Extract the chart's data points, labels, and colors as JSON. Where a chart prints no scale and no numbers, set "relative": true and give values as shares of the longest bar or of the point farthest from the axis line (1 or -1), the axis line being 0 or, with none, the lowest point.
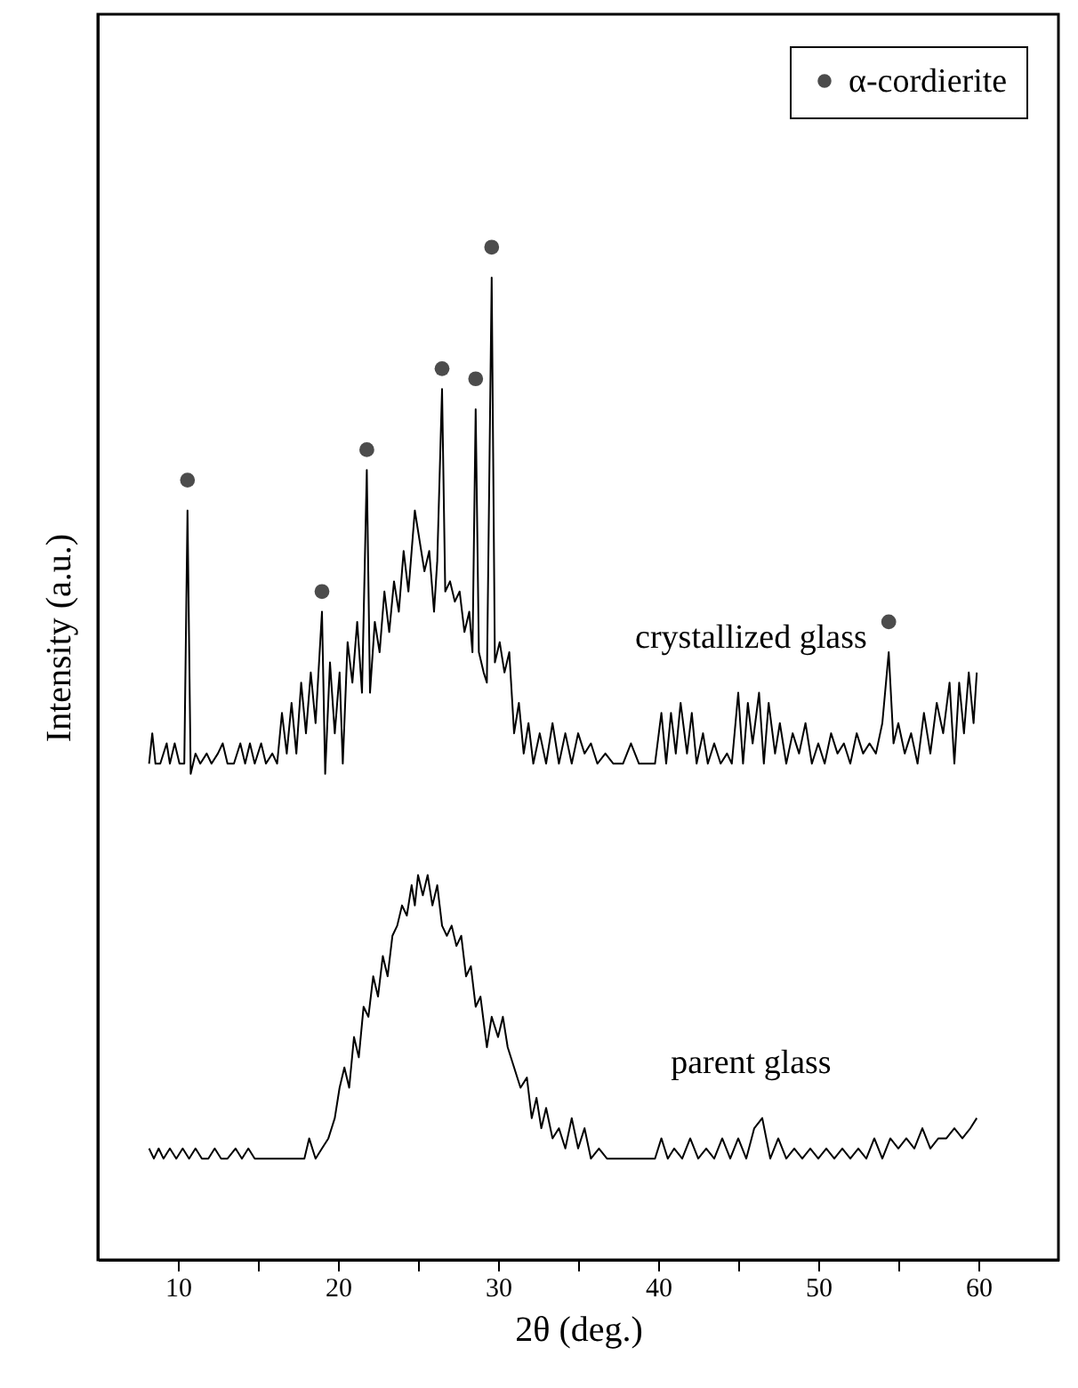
{
  "chart_data": {
    "type": "line",
    "xlabel": "2θ (deg.)",
    "ylabel": "Intensity (a.u.)",
    "relative": true,
    "legend": "top right",
    "grid": false,
    "xlim": [
      5,
      65
    ],
    "xticks": [
      10,
      {
        "value": 15,
        "label": null
      },
      20,
      {
        "value": 25,
        "label": null
      },
      30,
      {
        "value": 35,
        "label": null
      },
      40,
      {
        "value": 45,
        "label": null
      },
      50,
      {
        "value": 55,
        "label": null
      },
      60
    ],
    "series": [
      {
        "name": "crystallized glass",
        "color": "#000000",
        "x": [
          8.2,
          8.4,
          8.6,
          8.9,
          9.3,
          9.5,
          9.8,
          10.1,
          10.4,
          10.6,
          10.8,
          11.1,
          11.4,
          11.8,
          12.1,
          12.5,
          12.8,
          13.1,
          13.5,
          13.9,
          14.2,
          14.5,
          14.8,
          15.2,
          15.5,
          15.9,
          16.2,
          16.5,
          16.8,
          17.1,
          17.4,
          17.7,
          18.0,
          18.3,
          18.6,
          19.0,
          19.2,
          19.5,
          19.8,
          20.1,
          20.3,
          20.6,
          20.9,
          21.2,
          21.5,
          21.8,
          22.0,
          22.3,
          22.6,
          22.9,
          23.2,
          23.5,
          23.8,
          24.1,
          24.4,
          24.8,
          25.1,
          25.4,
          25.7,
          26.0,
          26.2,
          26.5,
          26.7,
          27.0,
          27.3,
          27.6,
          27.9,
          28.2,
          28.4,
          28.6,
          28.8,
          29.1,
          29.3,
          29.6,
          29.8,
          30.1,
          30.4,
          30.7,
          31.0,
          31.3,
          31.6,
          31.9,
          32.2,
          32.6,
          33.0,
          33.4,
          33.8,
          34.2,
          34.6,
          35.0,
          35.4,
          35.8,
          36.2,
          36.7,
          37.2,
          37.8,
          38.3,
          38.8,
          39.3,
          39.8,
          40.2,
          40.5,
          40.8,
          41.1,
          41.4,
          41.8,
          42.1,
          42.4,
          42.8,
          43.1,
          43.5,
          43.9,
          44.3,
          44.6,
          45.0,
          45.3,
          45.6,
          45.9,
          46.3,
          46.6,
          46.9,
          47.3,
          47.6,
          48.0,
          48.4,
          48.8,
          49.2,
          49.6,
          50.0,
          50.4,
          50.8,
          51.2,
          51.6,
          52.0,
          52.4,
          52.8,
          53.2,
          53.6,
          54.0,
          54.4,
          54.7,
          55.0,
          55.4,
          55.8,
          56.2,
          56.6,
          57.0,
          57.4,
          57.8,
          58.2,
          58.5,
          58.8,
          59.1,
          59.4,
          59.7,
          59.9
        ],
        "values": [
          0.49,
          0.52,
          0.49,
          0.49,
          0.51,
          0.49,
          0.51,
          0.49,
          0.49,
          0.74,
          0.48,
          0.5,
          0.49,
          0.5,
          0.49,
          0.5,
          0.51,
          0.49,
          0.49,
          0.51,
          0.49,
          0.51,
          0.49,
          0.51,
          0.49,
          0.5,
          0.49,
          0.54,
          0.5,
          0.55,
          0.5,
          0.57,
          0.52,
          0.58,
          0.53,
          0.64,
          0.48,
          0.59,
          0.52,
          0.58,
          0.49,
          0.61,
          0.57,
          0.63,
          0.56,
          0.78,
          0.56,
          0.63,
          0.6,
          0.66,
          0.62,
          0.67,
          0.64,
          0.7,
          0.66,
          0.74,
          0.71,
          0.68,
          0.7,
          0.64,
          0.69,
          0.86,
          0.66,
          0.67,
          0.65,
          0.66,
          0.62,
          0.64,
          0.6,
          0.84,
          0.6,
          0.58,
          0.57,
          0.97,
          0.59,
          0.61,
          0.58,
          0.6,
          0.52,
          0.55,
          0.5,
          0.53,
          0.49,
          0.52,
          0.49,
          0.53,
          0.49,
          0.52,
          0.49,
          0.52,
          0.5,
          0.51,
          0.49,
          0.5,
          0.49,
          0.49,
          0.51,
          0.49,
          0.49,
          0.49,
          0.54,
          0.49,
          0.54,
          0.5,
          0.55,
          0.5,
          0.54,
          0.49,
          0.52,
          0.49,
          0.51,
          0.49,
          0.5,
          0.49,
          0.56,
          0.49,
          0.55,
          0.51,
          0.56,
          0.49,
          0.55,
          0.5,
          0.53,
          0.49,
          0.52,
          0.5,
          0.53,
          0.49,
          0.51,
          0.49,
          0.52,
          0.5,
          0.51,
          0.49,
          0.52,
          0.5,
          0.51,
          0.5,
          0.53,
          0.6,
          0.51,
          0.53,
          0.5,
          0.52,
          0.49,
          0.54,
          0.5,
          0.55,
          0.52,
          0.57,
          0.49,
          0.57,
          0.52,
          0.58,
          0.53,
          0.58
        ]
      },
      {
        "name": "parent glass",
        "color": "#000000",
        "x": [
          8.2,
          8.5,
          8.8,
          9.1,
          9.5,
          9.9,
          10.3,
          10.7,
          11.1,
          11.5,
          11.9,
          12.3,
          12.7,
          13.1,
          13.6,
          14.0,
          14.4,
          14.8,
          15.3,
          15.8,
          16.5,
          17.2,
          17.9,
          18.2,
          18.6,
          19.0,
          19.4,
          19.8,
          20.1,
          20.4,
          20.7,
          21.0,
          21.3,
          21.6,
          21.9,
          22.2,
          22.5,
          22.8,
          23.1,
          23.4,
          23.7,
          24.0,
          24.3,
          24.6,
          24.8,
          25.0,
          25.3,
          25.6,
          25.9,
          26.2,
          26.5,
          26.8,
          27.1,
          27.4,
          27.7,
          28.0,
          28.3,
          28.6,
          28.9,
          29.3,
          29.6,
          30.0,
          30.3,
          30.6,
          31.0,
          31.4,
          31.8,
          32.1,
          32.4,
          32.7,
          33.0,
          33.4,
          33.8,
          34.2,
          34.6,
          35.0,
          35.4,
          35.8,
          36.3,
          36.8,
          37.4,
          38.0,
          38.6,
          39.2,
          39.8,
          40.2,
          40.6,
          41.0,
          41.5,
          42.0,
          42.5,
          43.0,
          43.5,
          44.0,
          44.5,
          45.0,
          45.5,
          46.0,
          46.5,
          47.0,
          47.5,
          48.0,
          48.5,
          49.0,
          49.5,
          50.0,
          50.5,
          51.0,
          51.5,
          52.0,
          52.5,
          53.0,
          53.5,
          54.0,
          54.5,
          55.0,
          55.5,
          56.0,
          56.5,
          57.0,
          57.5,
          58.0,
          58.5,
          59.0,
          59.5,
          59.9
        ],
        "values": [
          0.11,
          0.1,
          0.11,
          0.1,
          0.11,
          0.1,
          0.11,
          0.1,
          0.11,
          0.1,
          0.1,
          0.11,
          0.1,
          0.1,
          0.11,
          0.1,
          0.11,
          0.1,
          0.1,
          0.1,
          0.1,
          0.1,
          0.1,
          0.12,
          0.1,
          0.11,
          0.12,
          0.14,
          0.17,
          0.19,
          0.17,
          0.22,
          0.2,
          0.25,
          0.24,
          0.28,
          0.26,
          0.3,
          0.28,
          0.32,
          0.33,
          0.35,
          0.34,
          0.37,
          0.35,
          0.38,
          0.36,
          0.38,
          0.35,
          0.37,
          0.33,
          0.32,
          0.33,
          0.31,
          0.32,
          0.28,
          0.29,
          0.25,
          0.26,
          0.21,
          0.24,
          0.22,
          0.24,
          0.21,
          0.19,
          0.17,
          0.18,
          0.14,
          0.16,
          0.13,
          0.15,
          0.12,
          0.13,
          0.11,
          0.14,
          0.11,
          0.13,
          0.1,
          0.11,
          0.1,
          0.1,
          0.1,
          0.1,
          0.1,
          0.1,
          0.12,
          0.1,
          0.11,
          0.1,
          0.12,
          0.1,
          0.11,
          0.1,
          0.12,
          0.1,
          0.12,
          0.1,
          0.13,
          0.14,
          0.1,
          0.12,
          0.1,
          0.11,
          0.1,
          0.11,
          0.1,
          0.11,
          0.1,
          0.11,
          0.1,
          0.11,
          0.1,
          0.12,
          0.1,
          0.12,
          0.11,
          0.12,
          0.11,
          0.13,
          0.11,
          0.12,
          0.12,
          0.13,
          0.12,
          0.13,
          0.14
        ]
      },
      {
        "name": "α-cordierite",
        "type": "scatter",
        "marker": "circle",
        "color": "#000000",
        "x": [
          10.6,
          19.0,
          21.8,
          26.5,
          28.6,
          29.6,
          54.4
        ],
        "values": [
          0.77,
          0.66,
          0.8,
          0.88,
          0.87,
          1.0,
          0.63
        ]
      }
    ]
  }
}
